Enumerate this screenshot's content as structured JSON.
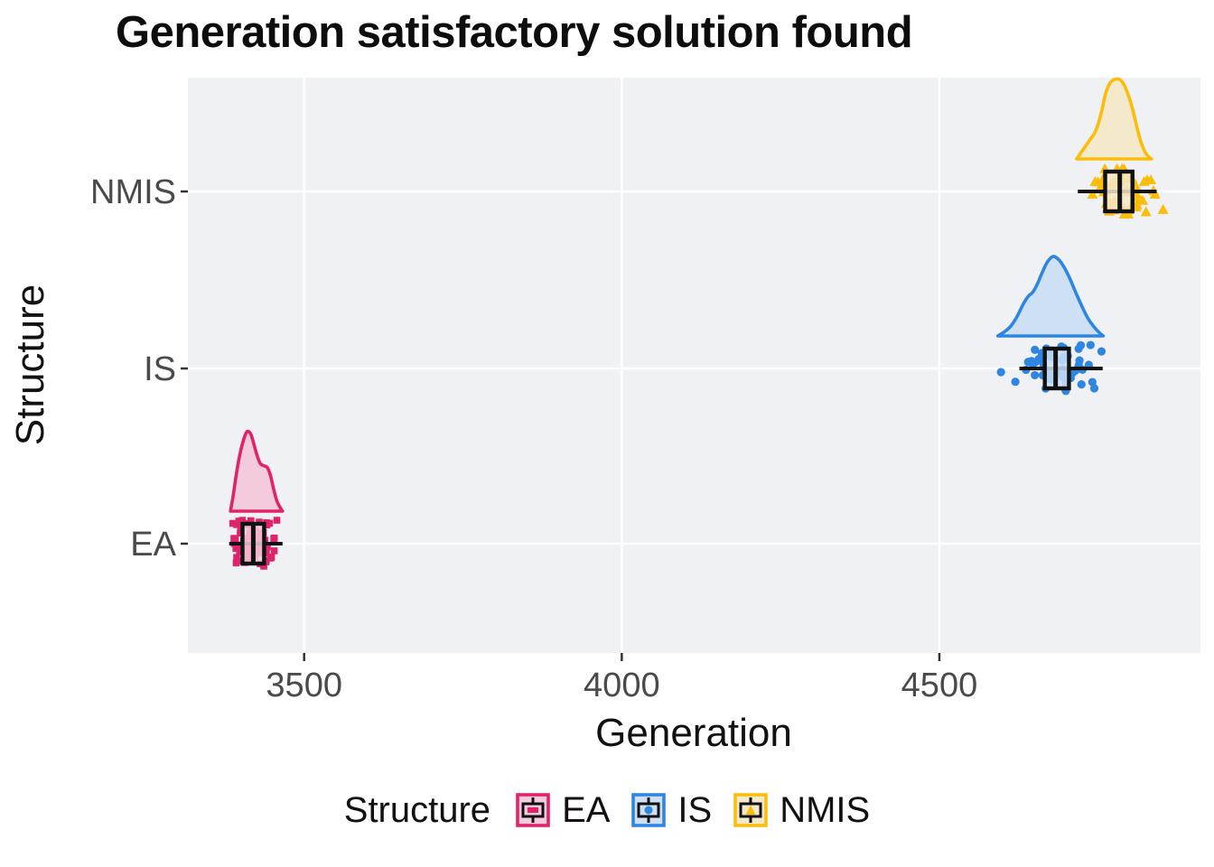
{
  "legend": {
    "title": "Structure"
  },
  "colors": {
    "panel_background": "#EFF1F4",
    "gridline": "#FFFFFF",
    "tick_mark": "#333333",
    "tick_label_text": "#4A4A4A",
    "axis_title_text": "#111111",
    "title_text": "#0D0D0D"
  },
  "chart_data": {
    "type": "raincloud (half-violin + boxplot + jittered points), horizontal",
    "title": "Generation satisfactory solution found",
    "xlabel": "Generation",
    "ylabel": "Structure",
    "x_domain": [
      3317,
      4911
    ],
    "x_ticks": [
      3500,
      4000,
      4500
    ],
    "x_tick_labels": [
      "3500",
      "4000",
      "4500"
    ],
    "y_categories_top_to_bottom": [
      "NMIS",
      "IS",
      "EA"
    ],
    "grid": "white major gridlines on light grey panel",
    "legend_position": "bottom",
    "series": [
      {
        "name": "EA",
        "marker": "square",
        "color": "#E0246B",
        "fill": "#F4CBDC",
        "box": {
          "whisker_low": 3382,
          "q1": 3403,
          "median": 3420,
          "q3": 3437,
          "whisker_high": 3466
        },
        "points": {
          "min": 3373,
          "max": 3476,
          "center": 3420,
          "sd": 18,
          "count": 75
        },
        "outliers": [],
        "violin": [
          [
            3384,
            0.0
          ],
          [
            3388,
            0.18
          ],
          [
            3393,
            0.45
          ],
          [
            3398,
            0.68
          ],
          [
            3404,
            0.88
          ],
          [
            3410,
            1.0
          ],
          [
            3416,
            0.97
          ],
          [
            3421,
            0.84
          ],
          [
            3426,
            0.7
          ],
          [
            3431,
            0.6
          ],
          [
            3437,
            0.57
          ],
          [
            3442,
            0.55
          ],
          [
            3447,
            0.45
          ],
          [
            3452,
            0.28
          ],
          [
            3457,
            0.13
          ],
          [
            3462,
            0.05
          ],
          [
            3466,
            0.0
          ]
        ]
      },
      {
        "name": "IS",
        "marker": "circle",
        "color": "#2E86E0",
        "fill": "#CDE0F4",
        "box": {
          "whisker_low": 4626,
          "q1": 4666,
          "median": 4683,
          "q3": 4704,
          "whisker_high": 4757
        },
        "points": {
          "min": 4596,
          "max": 4770,
          "center": 4684,
          "sd": 32,
          "count": 60
        },
        "outliers": [
          4597
        ],
        "violin": [
          [
            4592,
            0.0
          ],
          [
            4602,
            0.05
          ],
          [
            4612,
            0.12
          ],
          [
            4622,
            0.24
          ],
          [
            4632,
            0.4
          ],
          [
            4640,
            0.5
          ],
          [
            4647,
            0.55
          ],
          [
            4654,
            0.65
          ],
          [
            4662,
            0.8
          ],
          [
            4670,
            0.93
          ],
          [
            4679,
            1.0
          ],
          [
            4688,
            0.96
          ],
          [
            4696,
            0.87
          ],
          [
            4705,
            0.73
          ],
          [
            4714,
            0.56
          ],
          [
            4724,
            0.38
          ],
          [
            4734,
            0.22
          ],
          [
            4744,
            0.11
          ],
          [
            4752,
            0.04
          ],
          [
            4758,
            0.0
          ]
        ]
      },
      {
        "name": "NMIS",
        "marker": "triangle",
        "color": "#FBBD0B",
        "fill": "#F5E9CB",
        "box": {
          "whisker_low": 4718,
          "q1": 4761,
          "median": 4784,
          "q3": 4804,
          "whisker_high": 4842
        },
        "points": {
          "min": 4707,
          "max": 4856,
          "center": 4786,
          "sd": 28,
          "count": 62
        },
        "outliers": [],
        "violin": [
          [
            4716,
            0.0
          ],
          [
            4723,
            0.08
          ],
          [
            4730,
            0.16
          ],
          [
            4737,
            0.24
          ],
          [
            4744,
            0.32
          ],
          [
            4750,
            0.44
          ],
          [
            4756,
            0.62
          ],
          [
            4762,
            0.83
          ],
          [
            4769,
            0.96
          ],
          [
            4776,
            1.0
          ],
          [
            4784,
            1.0
          ],
          [
            4791,
            0.93
          ],
          [
            4798,
            0.79
          ],
          [
            4805,
            0.6
          ],
          [
            4811,
            0.4
          ],
          [
            4817,
            0.22
          ],
          [
            4823,
            0.1
          ],
          [
            4829,
            0.03
          ],
          [
            4834,
            0.0
          ]
        ]
      }
    ]
  }
}
